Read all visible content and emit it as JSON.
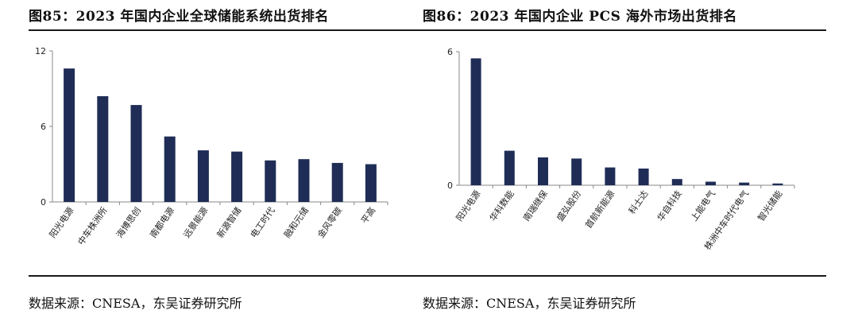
{
  "left_panel": {
    "title": "图85：2023 年国内企业全球储能系统出货排名",
    "source": "数据来源：CNESA，东吴证券研究所"
  },
  "right_panel": {
    "title": "图86：2023 年国内企业 PCS 海外市场出货排名",
    "source": "数据来源：CNESA，东吴证券研究所"
  },
  "chart_data": [
    {
      "type": "bar",
      "title": "2023 年国内企业全球储能系统出货排名",
      "categories": [
        "阳光电源",
        "中车株洲所",
        "海博思创",
        "南都电源",
        "远景能源",
        "新源智储",
        "电工时代",
        "融和元储",
        "金风零碳",
        "平高"
      ],
      "values": [
        10.6,
        8.4,
        7.7,
        5.2,
        4.1,
        4.0,
        3.3,
        3.4,
        3.1,
        3.0
      ],
      "ylim": [
        0,
        12
      ],
      "yticks": [
        0,
        6,
        12
      ],
      "color": "#1f2d56",
      "grid": false,
      "xlabel": "",
      "ylabel": ""
    },
    {
      "type": "bar",
      "title": "2023 年国内企业 PCS 海外市场出货排名",
      "categories": [
        "阳光电源",
        "华科数能",
        "南瑞继保",
        "盛弘股份",
        "首航新能源",
        "科士达",
        "华自科技",
        "上能电气",
        "株洲中车时代电气",
        "智光储能"
      ],
      "values": [
        5.7,
        1.55,
        1.25,
        1.2,
        0.8,
        0.75,
        0.28,
        0.16,
        0.12,
        0.08
      ],
      "ylim": [
        0,
        6
      ],
      "yticks": [
        0,
        6
      ],
      "color": "#1f2d56",
      "grid": false,
      "xlabel": "",
      "ylabel": ""
    }
  ]
}
